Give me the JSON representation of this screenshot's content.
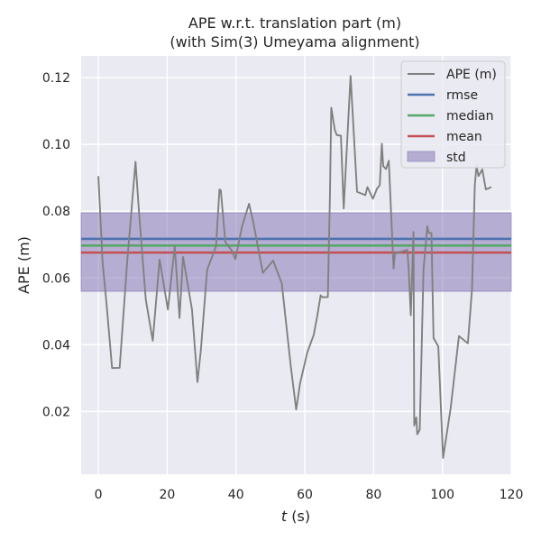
{
  "chart_data": {
    "type": "line",
    "title": [
      "APE w.r.t. translation part (m)",
      "(with Sim(3) Umeyama alignment)"
    ],
    "xlabel_var": "t",
    "xlabel_unit": " (s)",
    "ylabel": "APE (m)",
    "xlim": [
      -5,
      120
    ],
    "ylim": [
      0.0012,
      0.1265
    ],
    "xticks": [
      "0",
      "20",
      "40",
      "60",
      "80",
      "100",
      "120"
    ],
    "xtick_values": [
      0,
      20,
      40,
      60,
      80,
      100,
      120
    ],
    "yticks": [
      "0.02",
      "0.04",
      "0.06",
      "0.08",
      "0.10",
      "0.12"
    ],
    "ytick_values": [
      0.02,
      0.04,
      0.06,
      0.08,
      0.1,
      0.12
    ],
    "grid": true,
    "background": "#eaeaf2",
    "legend_position": "top-right",
    "series": [
      {
        "name": "APE (m)",
        "color": "#808080",
        "x": [
          0,
          1.2,
          2.3,
          4,
          6.2,
          8.4,
          10.8,
          11.8,
          13.8,
          15.8,
          17.8,
          20.2,
          22.2,
          23.6,
          24.6,
          27.2,
          28.8,
          29.8,
          31.6,
          34.2,
          35.2,
          35.6,
          36.9,
          38.8,
          39.8,
          41.8,
          43.8,
          45,
          47.8,
          50.8,
          53.3,
          55.9,
          57.5,
          58.6,
          60.7,
          62.6,
          63.6,
          64.6,
          65.1,
          66.7,
          67.3,
          67.7,
          68.7,
          69.3,
          70.5,
          71.3,
          73.3,
          75.2,
          77.6,
          78.2,
          79.8,
          81,
          81.8,
          82.4,
          82.8,
          83.6,
          84.4,
          85.8,
          86.2,
          89.8,
          90.2,
          90.8,
          91.6,
          91.8,
          92.4,
          92.7,
          93.4,
          94.5,
          95.6,
          96,
          96.8,
          97.4,
          98.8,
          100.2,
          102.4,
          104.8,
          107.4,
          108.6,
          109.4,
          109.9,
          110.5,
          111.6,
          112.6,
          114.2
        ],
        "y": [
          0.0905,
          0.065,
          0.053,
          0.033,
          0.0331,
          0.065,
          0.0948,
          0.08,
          0.0535,
          0.0412,
          0.0655,
          0.0505,
          0.0695,
          0.048,
          0.0663,
          0.0506,
          0.0288,
          0.0385,
          0.0624,
          0.0695,
          0.0865,
          0.0862,
          0.0708,
          0.0682,
          0.0656,
          0.0756,
          0.0822,
          0.0768,
          0.0615,
          0.0652,
          0.0584,
          0.0338,
          0.0206,
          0.0283,
          0.0376,
          0.043,
          0.0485,
          0.0548,
          0.0542,
          0.0543,
          0.0844,
          0.111,
          0.1045,
          0.1028,
          0.1026,
          0.0808,
          0.1205,
          0.0858,
          0.0848,
          0.0872,
          0.0837,
          0.0868,
          0.0878,
          0.1002,
          0.0935,
          0.0926,
          0.0951,
          0.0628,
          0.0673,
          0.0684,
          0.0622,
          0.0488,
          0.0738,
          0.0158,
          0.0182,
          0.0132,
          0.0145,
          0.0625,
          0.0755,
          0.0735,
          0.0735,
          0.042,
          0.0395,
          0.0061,
          0.021,
          0.0426,
          0.0404,
          0.0567,
          0.0878,
          0.0935,
          0.0905,
          0.0925,
          0.0865,
          0.0872
        ]
      },
      {
        "name": "rmse",
        "color": "#4c72b0",
        "value": 0.0717
      },
      {
        "name": "median",
        "color": "#55a868",
        "value": 0.0697
      },
      {
        "name": "mean",
        "color": "#c44e52",
        "value": 0.0676
      },
      {
        "name": "std",
        "color": "#8172b2",
        "range": [
          0.056,
          0.0795
        ]
      }
    ]
  }
}
